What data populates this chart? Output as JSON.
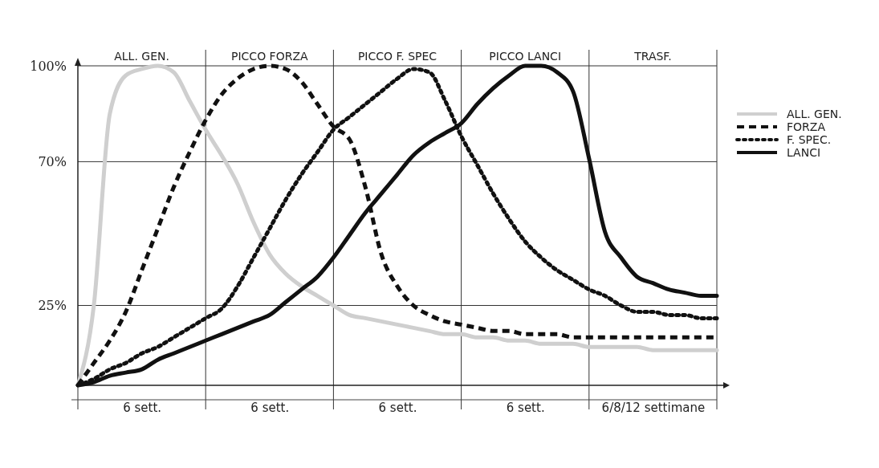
{
  "chart_data": {
    "type": "line",
    "categories": [
      null,
      null,
      null,
      null,
      "6 sett.",
      null,
      null,
      null,
      null,
      null,
      null,
      null,
      "6 sett.",
      null,
      null,
      null,
      null,
      null,
      null,
      null,
      "6 sett.",
      null,
      null,
      null,
      null,
      null,
      null,
      null,
      "6 sett.",
      null,
      null,
      null,
      null,
      null,
      null,
      null,
      "6/8/12 settimane",
      null,
      null,
      null,
      null
    ],
    "annotations": [
      "ALL. GEN.",
      "PICCO FORZA",
      "PICCO F. SPEC",
      "PICCO LANCI",
      "TRASF."
    ],
    "ylim": [
      0,
      100
    ],
    "yticks": [
      {
        "value": 25,
        "label": "25%"
      },
      {
        "value": 70,
        "label": "70%"
      },
      {
        "value": 100,
        "label": "100%"
      }
    ],
    "grid": true,
    "legend": "right",
    "series": [
      {
        "name": "ALL. GEN.",
        "color": "#cfcfcf",
        "line_style": "solid",
        "values": [
          0,
          25,
          85,
          97,
          99,
          100,
          98,
          89,
          80,
          72,
          63,
          51,
          41,
          35,
          31,
          28,
          25,
          22,
          21,
          20,
          19,
          18,
          17,
          16,
          16,
          15,
          15,
          14,
          14,
          13,
          13,
          13,
          12,
          12,
          12,
          12,
          11,
          11,
          11,
          11,
          11
        ]
      },
      {
        "name": "FORZA",
        "color": "#111111",
        "line_style": "dashed",
        "values": [
          0,
          7,
          14,
          23,
          36,
          49,
          62,
          73,
          83,
          91,
          96,
          99,
          100,
          99,
          95,
          88,
          81,
          77,
          62,
          41,
          31,
          25,
          22,
          20,
          19,
          18,
          17,
          17,
          16,
          16,
          16,
          15,
          15,
          15,
          15,
          15,
          15,
          15,
          15,
          15,
          15
        ]
      },
      {
        "name": "F. SPEC.",
        "color": "#111111",
        "line_style": "dotted",
        "values": [
          0,
          2,
          5,
          7,
          10,
          12,
          15,
          18,
          21,
          24,
          31,
          40,
          49,
          58,
          66,
          73,
          80,
          84,
          88,
          92,
          96,
          99,
          98,
          89,
          78,
          69,
          60,
          52,
          45,
          40,
          36,
          33,
          30,
          28,
          25,
          23,
          23,
          22,
          22,
          21,
          21
        ]
      },
      {
        "name": "LANCI",
        "color": "#111111",
        "line_style": "solid",
        "values": [
          0,
          1,
          3,
          4,
          5,
          8,
          10,
          12,
          14,
          16,
          18,
          20,
          22,
          26,
          30,
          34,
          40,
          47,
          54,
          60,
          66,
          72,
          76,
          79,
          82,
          88,
          93,
          97,
          100,
          100,
          98,
          92,
          71,
          48,
          40,
          34,
          32,
          30,
          29,
          28,
          28
        ]
      }
    ]
  }
}
